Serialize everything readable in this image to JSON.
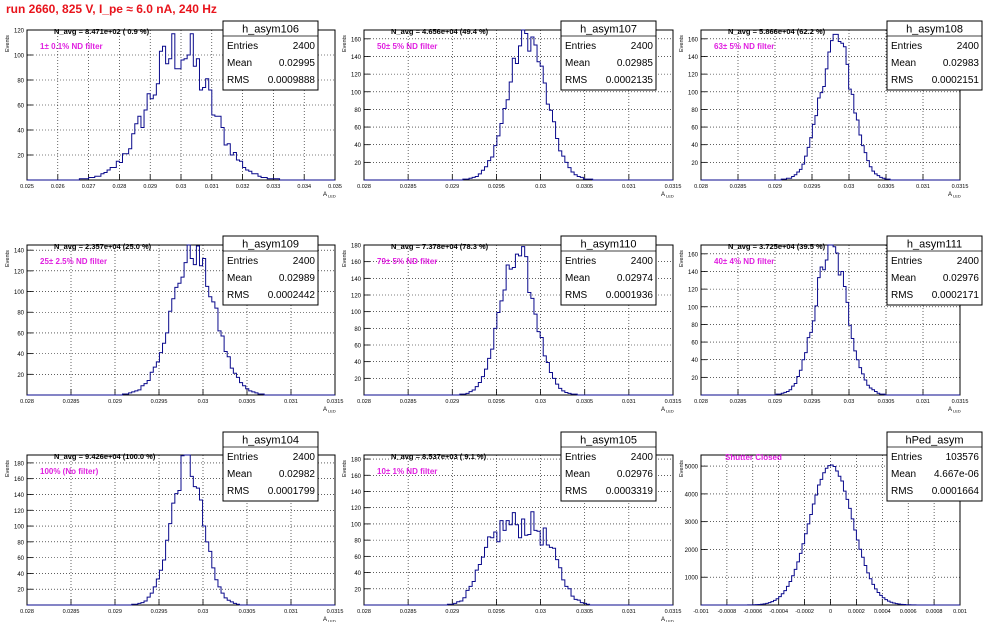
{
  "page_title": "run 2660,   825 V, I_pe ≈ 6.0 nA, 240 Hz",
  "chart_data": [
    {
      "type": "histogram",
      "name": "h_asym106",
      "navg": "N_avg = 8.471e+02 ( 0.9 %)",
      "filter": "1± 0.1% ND filter",
      "stats": [
        [
          "Entries",
          "2400"
        ],
        [
          "Mean",
          "0.02995"
        ],
        [
          "RMS",
          "0.0009888"
        ]
      ],
      "xlim": [
        0.025,
        0.035
      ],
      "ylim": [
        0,
        120
      ],
      "mean": 0.02995,
      "rms": 0.0009888,
      "peak": 105,
      "shape": "gauss",
      "jitter": 0.22,
      "xticks": [
        "0.025",
        "0.026",
        "0.027",
        "0.028",
        "0.029",
        "0.03",
        "0.031",
        "0.032",
        "0.033",
        "0.034",
        "0.035"
      ],
      "yticks": [
        "20",
        "40",
        "60",
        "80",
        "100",
        "120"
      ],
      "xlabel": "A",
      "xsub": "LED",
      "ylabel": "Events"
    },
    {
      "type": "histogram",
      "name": "h_asym107",
      "navg": "N_avg = 4.656e+04 (49.4 %)",
      "filter": "50± 5% ND filter",
      "stats": [
        [
          "Entries",
          "2400"
        ],
        [
          "Mean",
          "0.02985"
        ],
        [
          "RMS",
          "0.0002135"
        ]
      ],
      "xlim": [
        0.028,
        0.0315
      ],
      "ylim": [
        0,
        170
      ],
      "mean": 0.02985,
      "rms": 0.0002135,
      "peak": 163,
      "shape": "gauss",
      "jitter": 0.1,
      "xticks": [
        "0.028",
        "0.0285",
        "0.029",
        "0.0295",
        "0.03",
        "0.0305",
        "0.031",
        "0.0315"
      ],
      "yticks": [
        "20",
        "40",
        "60",
        "80",
        "100",
        "120",
        "140",
        "160"
      ],
      "xlabel": "A",
      "xsub": "LED",
      "ylabel": "Events"
    },
    {
      "type": "histogram",
      "name": "h_asym108",
      "navg": "N_avg = 5.866e+04 (62.2 %)",
      "filter": "63± 5% ND filter",
      "stats": [
        [
          "Entries",
          "2400"
        ],
        [
          "Mean",
          "0.02983"
        ],
        [
          "RMS",
          "0.0002151"
        ]
      ],
      "xlim": [
        0.028,
        0.0315
      ],
      "ylim": [
        0,
        170
      ],
      "mean": 0.02983,
      "rms": 0.0002151,
      "peak": 160,
      "shape": "gauss",
      "jitter": 0.1,
      "xticks": [
        "0.028",
        "0.0285",
        "0.029",
        "0.0295",
        "0.03",
        "0.0305",
        "0.031",
        "0.0315"
      ],
      "yticks": [
        "20",
        "40",
        "60",
        "80",
        "100",
        "120",
        "140",
        "160"
      ],
      "xlabel": "A",
      "xsub": "LED",
      "ylabel": "Events"
    },
    {
      "type": "histogram",
      "name": "h_asym109",
      "navg": "N_avg = 2.357e+04 (25.0 %)",
      "filter": "25± 2.5% ND filter",
      "stats": [
        [
          "Entries",
          "2400"
        ],
        [
          "Mean",
          "0.02989"
        ],
        [
          "RMS",
          "0.0002442"
        ]
      ],
      "xlim": [
        0.028,
        0.0315
      ],
      "ylim": [
        0,
        145
      ],
      "mean": 0.02989,
      "rms": 0.0002442,
      "peak": 137,
      "shape": "gauss",
      "jitter": 0.1,
      "xticks": [
        "0.028",
        "0.0285",
        "0.029",
        "0.0295",
        "0.03",
        "0.0305",
        "0.031",
        "0.0315"
      ],
      "yticks": [
        "20",
        "40",
        "60",
        "80",
        "100",
        "120",
        "140"
      ],
      "xlabel": "A",
      "xsub": "LED",
      "ylabel": "Events"
    },
    {
      "type": "histogram",
      "name": "h_asym110",
      "navg": "N_avg = 7.378e+04 (78.3 %)",
      "filter": "79± 5% ND filter",
      "stats": [
        [
          "Entries",
          "2400"
        ],
        [
          "Mean",
          "0.02974"
        ],
        [
          "RMS",
          "0.0001936"
        ]
      ],
      "xlim": [
        0.028,
        0.0315
      ],
      "ylim": [
        0,
        180
      ],
      "mean": 0.02974,
      "rms": 0.0001936,
      "peak": 172,
      "shape": "gauss",
      "jitter": 0.1,
      "xticks": [
        "0.028",
        "0.0285",
        "0.029",
        "0.0295",
        "0.03",
        "0.0305",
        "0.031",
        "0.0315"
      ],
      "yticks": [
        "20",
        "40",
        "60",
        "80",
        "100",
        "120",
        "140",
        "160",
        "180"
      ],
      "xlabel": "A",
      "xsub": "LED",
      "ylabel": "Events"
    },
    {
      "type": "histogram",
      "name": "h_asym111",
      "navg": "N_avg = 3.725e+04 (39.5 %)",
      "filter": "40± 4% ND filter",
      "stats": [
        [
          "Entries",
          "2400"
        ],
        [
          "Mean",
          "0.02976"
        ],
        [
          "RMS",
          "0.0002171"
        ]
      ],
      "xlim": [
        0.028,
        0.0315
      ],
      "ylim": [
        0,
        170
      ],
      "mean": 0.02976,
      "rms": 0.0002171,
      "peak": 165,
      "shape": "gauss",
      "jitter": 0.1,
      "xticks": [
        "0.028",
        "0.0285",
        "0.029",
        "0.0295",
        "0.03",
        "0.0305",
        "0.031",
        "0.0315"
      ],
      "yticks": [
        "20",
        "40",
        "60",
        "80",
        "100",
        "120",
        "140",
        "160"
      ],
      "xlabel": "A",
      "xsub": "LED",
      "ylabel": "Events"
    },
    {
      "type": "histogram",
      "name": "h_asym104",
      "navg": "N_avg = 9.426e+04 (100.0 %)",
      "filter": "100% (No filter)",
      "stats": [
        [
          "Entries",
          "2400"
        ],
        [
          "Mean",
          "0.02982"
        ],
        [
          "RMS",
          "0.0001799"
        ]
      ],
      "xlim": [
        0.028,
        0.0315
      ],
      "ylim": [
        0,
        190
      ],
      "mean": 0.02982,
      "rms": 0.0001799,
      "peak": 180,
      "shape": "gauss",
      "jitter": 0.1,
      "xticks": [
        "0.028",
        "0.0285",
        "0.029",
        "0.0295",
        "0.03",
        "0.0305",
        "0.031",
        "0.0315"
      ],
      "yticks": [
        "20",
        "40",
        "60",
        "80",
        "100",
        "120",
        "140",
        "160",
        "180"
      ],
      "xlabel": "A",
      "xsub": "LED",
      "ylabel": "Events"
    },
    {
      "type": "histogram",
      "name": "h_asym105",
      "navg": "N_avg = 8.537e+03 ( 9.1 %)",
      "filter": "10± 1% ND filter",
      "stats": [
        [
          "Entries",
          "2400"
        ],
        [
          "Mean",
          "0.02976"
        ],
        [
          "RMS",
          "0.0003319"
        ]
      ],
      "xlim": [
        0.028,
        0.0315
      ],
      "ylim": [
        0,
        185
      ],
      "mean": 0.02976,
      "rms": 0.0003319,
      "peak": 100,
      "shape": "flat",
      "jitter": 0.18,
      "xticks": [
        "0.028",
        "0.0285",
        "0.029",
        "0.0295",
        "0.03",
        "0.0305",
        "0.031",
        "0.0315"
      ],
      "yticks": [
        "20",
        "40",
        "60",
        "80",
        "100",
        "120",
        "140",
        "160",
        "180"
      ],
      "xlabel": "A",
      "xsub": "LED",
      "ylabel": "Events"
    },
    {
      "type": "histogram",
      "name": "hPed_asym",
      "navg": "",
      "filter": "Shutter Closed",
      "stats": [
        [
          "Entries",
          "103576"
        ],
        [
          "Mean",
          "4.667e-06"
        ],
        [
          "RMS",
          "0.0001664"
        ]
      ],
      "xlim": [
        -0.001,
        0.001
      ],
      "ylim": [
        0,
        5400
      ],
      "mean": 4.667e-06,
      "rms": 0.0001664,
      "peak": 5050,
      "shape": "gauss",
      "jitter": 0.01,
      "xticks": [
        "-0.001",
        "-0.0008",
        "-0.0006",
        "-0.0004",
        "-0.0002",
        "0",
        "0.0002",
        "0.0004",
        "0.0006",
        "0.0008",
        "0.001"
      ],
      "yticks": [
        "1000",
        "2000",
        "3000",
        "4000",
        "5000"
      ],
      "xlabel": "",
      "xsub": "",
      "ylabel": "Events"
    }
  ]
}
